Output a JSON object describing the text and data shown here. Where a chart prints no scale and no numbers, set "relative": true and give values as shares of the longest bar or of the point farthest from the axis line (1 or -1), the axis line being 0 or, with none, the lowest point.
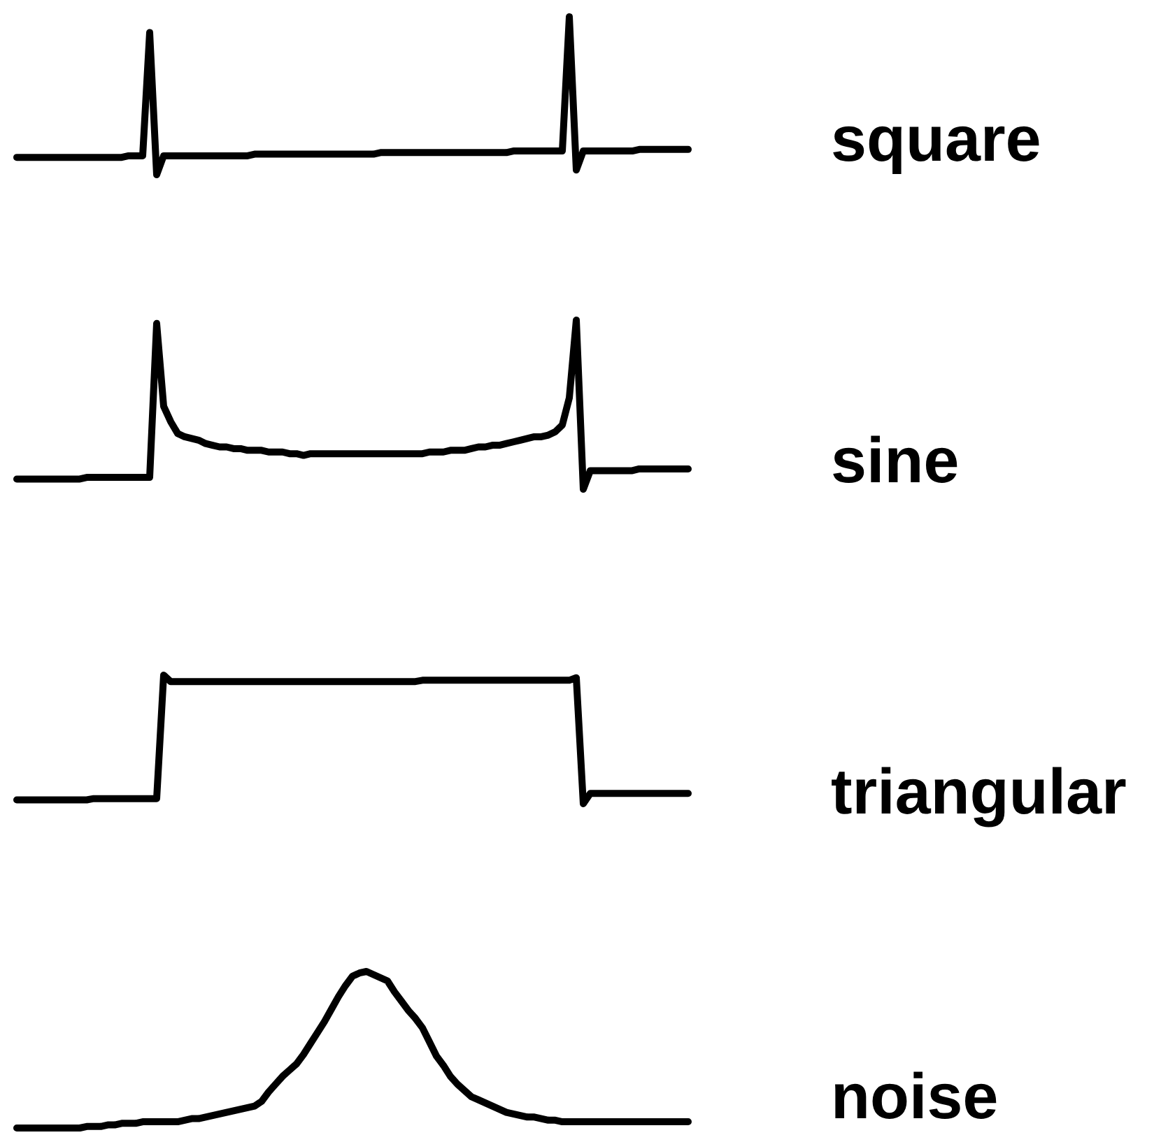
{
  "chart_data": [
    {
      "type": "line",
      "relative": true,
      "categories": [
        null,
        null,
        null,
        null,
        null,
        null,
        null,
        null,
        null,
        null,
        null,
        null,
        null,
        null,
        null,
        null,
        null,
        null,
        null,
        null,
        null,
        null,
        null,
        null,
        null,
        null,
        null,
        null,
        null,
        null,
        null,
        null,
        null,
        null,
        null,
        null,
        null,
        null,
        null,
        null,
        null,
        null,
        null,
        null,
        null,
        null,
        null,
        null,
        null,
        null,
        null,
        null,
        null,
        null,
        null,
        null,
        null,
        null,
        null,
        null,
        null,
        null,
        null,
        null,
        null,
        null,
        null,
        null,
        null,
        null,
        null,
        null,
        null,
        null,
        null,
        null,
        null,
        null,
        null,
        null,
        null,
        null,
        null,
        null,
        null,
        null,
        null,
        null,
        null,
        null,
        null,
        null,
        null,
        null,
        null,
        null,
        null
      ],
      "series": [
        {
          "name": "square",
          "color": "#000000",
          "values": [
            0.11,
            0.11,
            0.11,
            0.11,
            0.11,
            0.11,
            0.11,
            0.11,
            0.11,
            0.11,
            0.11,
            0.11,
            0.11,
            0.11,
            0.11,
            0.11,
            0.12,
            0.12,
            0.12,
            0.9,
            0,
            0.12,
            0.12,
            0.12,
            0.12,
            0.12,
            0.12,
            0.12,
            0.12,
            0.12,
            0.12,
            0.12,
            0.12,
            0.12,
            0.13,
            0.13,
            0.13,
            0.13,
            0.13,
            0.13,
            0.13,
            0.13,
            0.13,
            0.13,
            0.13,
            0.13,
            0.13,
            0.13,
            0.13,
            0.13,
            0.13,
            0.13,
            0.14,
            0.14,
            0.14,
            0.14,
            0.14,
            0.14,
            0.14,
            0.14,
            0.14,
            0.14,
            0.14,
            0.14,
            0.14,
            0.14,
            0.14,
            0.14,
            0.14,
            0.14,
            0.14,
            0.15,
            0.15,
            0.15,
            0.15,
            0.15,
            0.15,
            0.15,
            0.15,
            1,
            0.03,
            0.15,
            0.15,
            0.15,
            0.15,
            0.15,
            0.15,
            0.15,
            0.15,
            0.16,
            0.16,
            0.16,
            0.16,
            0.16,
            0.16,
            0.16,
            0.16
          ]
        }
      ]
    },
    {
      "type": "line",
      "relative": true,
      "categories": [
        null,
        null,
        null,
        null,
        null,
        null,
        null,
        null,
        null,
        null,
        null,
        null,
        null,
        null,
        null,
        null,
        null,
        null,
        null,
        null,
        null,
        null,
        null,
        null,
        null,
        null,
        null,
        null,
        null,
        null,
        null,
        null,
        null,
        null,
        null,
        null,
        null,
        null,
        null,
        null,
        null,
        null,
        null,
        null,
        null,
        null,
        null,
        null,
        null,
        null,
        null,
        null,
        null,
        null,
        null,
        null,
        null,
        null,
        null,
        null,
        null,
        null,
        null,
        null,
        null,
        null,
        null,
        null,
        null,
        null,
        null,
        null,
        null,
        null,
        null,
        null,
        null,
        null,
        null,
        null,
        null,
        null,
        null,
        null,
        null,
        null,
        null,
        null,
        null,
        null,
        null,
        null,
        null,
        null,
        null,
        null,
        null
      ],
      "series": [
        {
          "name": "sine",
          "color": "#000000",
          "values": [
            0.06,
            0.06,
            0.06,
            0.06,
            0.06,
            0.06,
            0.06,
            0.06,
            0.06,
            0.06,
            0.07,
            0.07,
            0.07,
            0.07,
            0.07,
            0.07,
            0.07,
            0.07,
            0.07,
            0.07,
            0.98,
            0.49,
            0.4,
            0.33,
            0.31,
            0.3,
            0.29,
            0.27,
            0.26,
            0.25,
            0.25,
            0.24,
            0.24,
            0.23,
            0.23,
            0.23,
            0.22,
            0.22,
            0.22,
            0.21,
            0.21,
            0.2,
            0.21,
            0.21,
            0.21,
            0.21,
            0.21,
            0.21,
            0.21,
            0.21,
            0.21,
            0.21,
            0.21,
            0.21,
            0.21,
            0.21,
            0.21,
            0.21,
            0.21,
            0.22,
            0.22,
            0.22,
            0.23,
            0.23,
            0.23,
            0.24,
            0.25,
            0.25,
            0.26,
            0.26,
            0.27,
            0.28,
            0.29,
            0.3,
            0.31,
            0.31,
            0.32,
            0.34,
            0.38,
            0.54,
            1,
            0,
            0.11,
            0.11,
            0.11,
            0.11,
            0.11,
            0.11,
            0.11,
            0.12,
            0.12,
            0.12,
            0.12,
            0.12,
            0.12,
            0.12,
            0.12
          ]
        }
      ]
    },
    {
      "type": "line",
      "relative": true,
      "categories": [
        null,
        null,
        null,
        null,
        null,
        null,
        null,
        null,
        null,
        null,
        null,
        null,
        null,
        null,
        null,
        null,
        null,
        null,
        null,
        null,
        null,
        null,
        null,
        null,
        null,
        null,
        null,
        null,
        null,
        null,
        null,
        null,
        null,
        null,
        null,
        null,
        null,
        null,
        null,
        null,
        null,
        null,
        null,
        null,
        null,
        null,
        null,
        null,
        null,
        null,
        null,
        null,
        null,
        null,
        null,
        null,
        null,
        null,
        null,
        null,
        null,
        null,
        null,
        null,
        null,
        null,
        null,
        null,
        null,
        null,
        null,
        null,
        null,
        null,
        null,
        null,
        null,
        null,
        null,
        null,
        null,
        null,
        null,
        null,
        null,
        null,
        null,
        null,
        null,
        null,
        null,
        null,
        null,
        null,
        null,
        null,
        null
      ],
      "series": [
        {
          "name": "triangular",
          "color": "#000000",
          "values": [
            0.03,
            0.03,
            0.03,
            0.03,
            0.03,
            0.03,
            0.03,
            0.03,
            0.03,
            0.03,
            0.03,
            0.04,
            0.04,
            0.04,
            0.04,
            0.04,
            0.04,
            0.04,
            0.04,
            0.04,
            0.04,
            1,
            0.95,
            0.95,
            0.95,
            0.95,
            0.95,
            0.95,
            0.95,
            0.95,
            0.95,
            0.95,
            0.95,
            0.95,
            0.95,
            0.95,
            0.95,
            0.95,
            0.95,
            0.95,
            0.95,
            0.95,
            0.95,
            0.95,
            0.95,
            0.95,
            0.95,
            0.95,
            0.95,
            0.95,
            0.95,
            0.95,
            0.95,
            0.95,
            0.95,
            0.95,
            0.95,
            0.95,
            0.96,
            0.96,
            0.96,
            0.96,
            0.96,
            0.96,
            0.96,
            0.96,
            0.96,
            0.96,
            0.96,
            0.96,
            0.96,
            0.96,
            0.96,
            0.96,
            0.96,
            0.96,
            0.96,
            0.96,
            0.96,
            0.96,
            0.98,
            0,
            0.08,
            0.08,
            0.08,
            0.08,
            0.08,
            0.08,
            0.08,
            0.08,
            0.08,
            0.08,
            0.08,
            0.08,
            0.08,
            0.08,
            0.08
          ]
        }
      ]
    },
    {
      "type": "line",
      "relative": true,
      "categories": [
        null,
        null,
        null,
        null,
        null,
        null,
        null,
        null,
        null,
        null,
        null,
        null,
        null,
        null,
        null,
        null,
        null,
        null,
        null,
        null,
        null,
        null,
        null,
        null,
        null,
        null,
        null,
        null,
        null,
        null,
        null,
        null,
        null,
        null,
        null,
        null,
        null,
        null,
        null,
        null,
        null,
        null,
        null,
        null,
        null,
        null,
        null,
        null,
        null,
        null,
        null,
        null,
        null,
        null,
        null,
        null,
        null,
        null,
        null,
        null,
        null,
        null,
        null,
        null,
        null,
        null,
        null,
        null,
        null,
        null,
        null,
        null,
        null,
        null,
        null,
        null,
        null,
        null,
        null,
        null,
        null,
        null,
        null,
        null,
        null,
        null,
        null,
        null,
        null,
        null,
        null,
        null,
        null,
        null,
        null,
        null,
        null
      ],
      "series": [
        {
          "name": "noise",
          "color": "#000000",
          "values": [
            0,
            0,
            0,
            0,
            0,
            0,
            0,
            0,
            0,
            0,
            0.01,
            0.01,
            0.01,
            0.02,
            0.02,
            0.03,
            0.03,
            0.03,
            0.04,
            0.04,
            0.04,
            0.04,
            0.04,
            0.04,
            0.05,
            0.06,
            0.06,
            0.07,
            0.08,
            0.09,
            0.1,
            0.11,
            0.12,
            0.13,
            0.14,
            0.17,
            0.23,
            0.28,
            0.33,
            0.37,
            0.41,
            0.47,
            0.54,
            0.61,
            0.68,
            0.76,
            0.84,
            0.91,
            0.97,
            0.99,
            1,
            0.98,
            0.96,
            0.94,
            0.87,
            0.81,
            0.75,
            0.7,
            0.64,
            0.55,
            0.46,
            0.4,
            0.33,
            0.28,
            0.24,
            0.2,
            0.18,
            0.16,
            0.14,
            0.12,
            0.1,
            0.09,
            0.08,
            0.07,
            0.07,
            0.06,
            0.05,
            0.05,
            0.04,
            0.04,
            0.04,
            0.04,
            0.04,
            0.04,
            0.04,
            0.04,
            0.04,
            0.04,
            0.04,
            0.04,
            0.04,
            0.04,
            0.04,
            0.04,
            0.04,
            0.04,
            0.04
          ]
        }
      ]
    }
  ]
}
